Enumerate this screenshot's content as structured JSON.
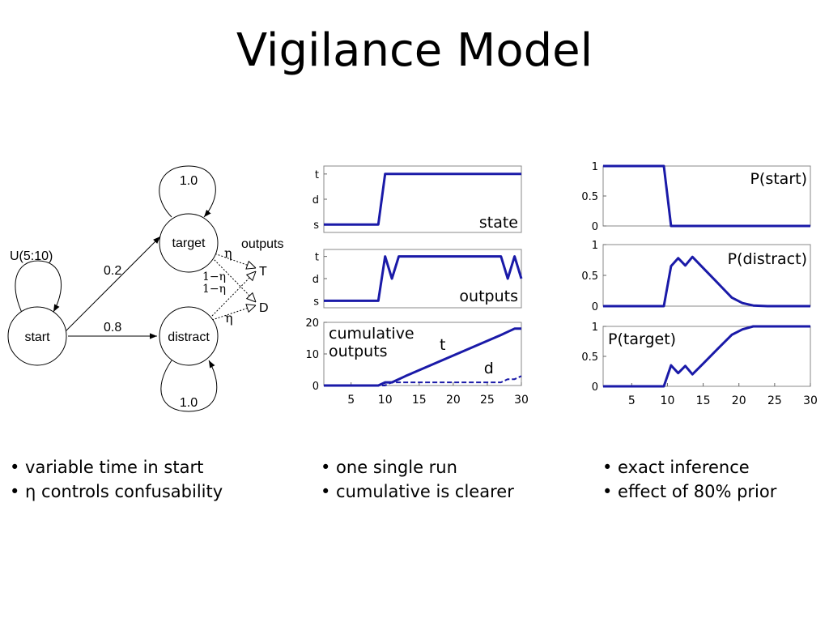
{
  "title": "Vigilance Model",
  "diagram": {
    "nodes": {
      "start": "start",
      "target": "target",
      "distract": "distract"
    },
    "edges": {
      "start_self": "U(5:10)",
      "target_self": "1.0",
      "distract_self": "1.0",
      "start_target": "0.2",
      "start_distract": "0.8"
    },
    "outputs_label": "outputs",
    "output_T": "T",
    "output_D": "D",
    "eta": "η",
    "one_minus_eta": "1−η"
  },
  "chart_data": [
    {
      "type": "line",
      "panel": "state",
      "annotation": "state",
      "yticks": [
        "s",
        "d",
        "t"
      ],
      "x": [
        1,
        9,
        10,
        30
      ],
      "series": [
        {
          "values": [
            "s",
            "s",
            "t",
            "t"
          ]
        }
      ]
    },
    {
      "type": "line",
      "panel": "outputs",
      "annotation": "outputs",
      "yticks": [
        "s",
        "d",
        "t"
      ],
      "x": [
        1,
        9,
        10,
        11,
        12,
        13,
        27,
        28,
        29,
        30
      ],
      "series": [
        {
          "values": [
            "s",
            "s",
            "t",
            "d",
            "t",
            "t",
            "t",
            "d",
            "t",
            "d"
          ]
        }
      ]
    },
    {
      "type": "line",
      "panel": "cumulative",
      "annotation": "cumulative outputs",
      "xlim": [
        1,
        30
      ],
      "ylim": [
        0,
        20
      ],
      "yticks": [
        0,
        10,
        20
      ],
      "xticks": [
        5,
        10,
        15,
        20,
        25,
        30
      ],
      "x": [
        1,
        9,
        10,
        11,
        12,
        13,
        27,
        28,
        29,
        30
      ],
      "series": [
        {
          "name": "t",
          "style": "solid",
          "values": [
            0,
            0,
            1,
            1,
            2,
            3,
            16,
            17,
            18,
            18
          ]
        },
        {
          "name": "d",
          "style": "dashed",
          "values": [
            0,
            0,
            0,
            1,
            1,
            1,
            1,
            2,
            2,
            3
          ]
        }
      ]
    },
    {
      "type": "line",
      "panel": "P(start)",
      "annotation": "P(start)",
      "xlim": [
        1,
        30
      ],
      "ylim": [
        0,
        1
      ],
      "yticks": [
        "0",
        "0.5",
        "1"
      ],
      "x": [
        1,
        9.5,
        10.5,
        30
      ],
      "series": [
        {
          "values": [
            1,
            1,
            0,
            0
          ]
        }
      ]
    },
    {
      "type": "line",
      "panel": "P(distract)",
      "annotation": "P(distract)",
      "xlim": [
        1,
        30
      ],
      "ylim": [
        0,
        1
      ],
      "yticks": [
        "0",
        "0.5",
        "1"
      ],
      "x": [
        1,
        9.5,
        10.5,
        11.5,
        12.5,
        13.5,
        15,
        17,
        19,
        20.5,
        22,
        24,
        30
      ],
      "series": [
        {
          "values": [
            0,
            0,
            0.65,
            0.78,
            0.66,
            0.8,
            0.62,
            0.38,
            0.14,
            0.05,
            0.01,
            0,
            0
          ]
        }
      ]
    },
    {
      "type": "line",
      "panel": "P(target)",
      "annotation": "P(target)",
      "xlim": [
        1,
        30
      ],
      "ylim": [
        0,
        1
      ],
      "yticks": [
        "0",
        "0.5",
        "1"
      ],
      "xticks": [
        5,
        10,
        15,
        20,
        25,
        30
      ],
      "x": [
        1,
        9.5,
        10.5,
        11.5,
        12.5,
        13.5,
        15,
        17,
        19,
        20.5,
        22,
        30
      ],
      "series": [
        {
          "values": [
            0,
            0,
            0.35,
            0.22,
            0.34,
            0.2,
            0.38,
            0.62,
            0.86,
            0.95,
            1,
            1
          ]
        }
      ]
    }
  ],
  "bullets": {
    "col1": [
      "• variable time in start",
      "• η controls confusability"
    ],
    "col2": [
      "• one single run",
      "• cumulative is clearer"
    ],
    "col3": [
      "• exact inference",
      "• effect of 80% prior"
    ]
  }
}
